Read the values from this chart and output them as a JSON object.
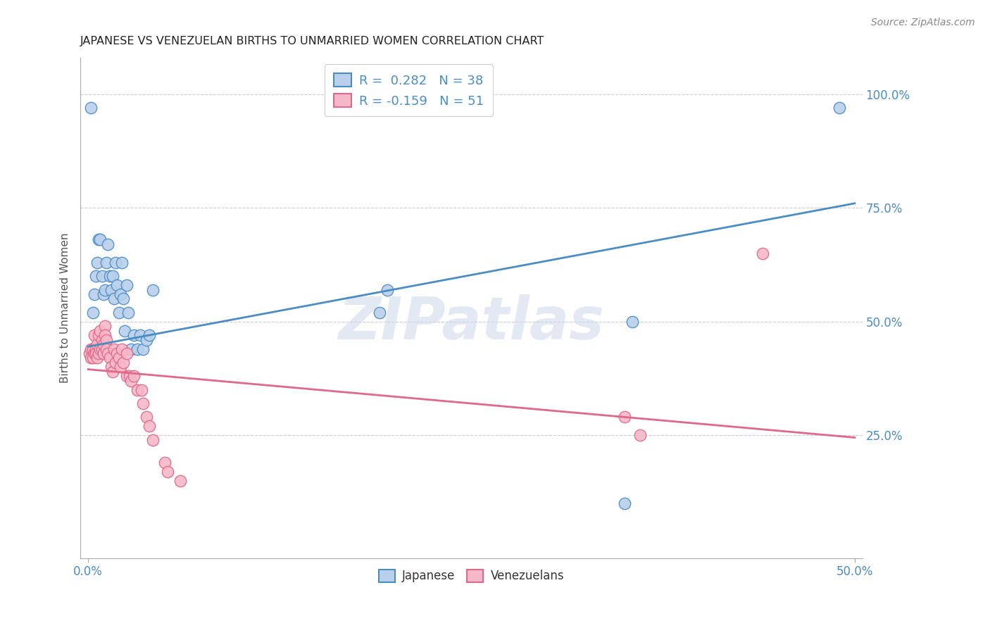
{
  "title": "JAPANESE VS VENEZUELAN BIRTHS TO UNMARRIED WOMEN CORRELATION CHART",
  "source": "Source: ZipAtlas.com",
  "ylabel": "Births to Unmarried Women",
  "right_yticks": [
    "100.0%",
    "75.0%",
    "50.0%",
    "25.0%"
  ],
  "right_ytick_vals": [
    1.0,
    0.75,
    0.5,
    0.25
  ],
  "xlim": [
    -0.005,
    0.505
  ],
  "ylim": [
    -0.02,
    1.08
  ],
  "japanese_R": 0.282,
  "japanese_N": 38,
  "venezuelan_R": -0.159,
  "venezuelan_N": 51,
  "japanese_color": "#b8d0ea",
  "japanese_line_color": "#4a8cc4",
  "venezuelan_color": "#f5b8c8",
  "venezuelan_line_color": "#e06888",
  "legend_text_color": "#4a8cc4",
  "watermark": "ZIPatlas",
  "japanese_x": [
    0.002,
    0.003,
    0.004,
    0.005,
    0.006,
    0.007,
    0.008,
    0.009,
    0.01,
    0.011,
    0.012,
    0.013,
    0.014,
    0.015,
    0.016,
    0.017,
    0.018,
    0.019,
    0.02,
    0.021,
    0.022,
    0.023,
    0.024,
    0.025,
    0.026,
    0.028,
    0.03,
    0.032,
    0.034,
    0.036,
    0.038,
    0.04,
    0.042,
    0.19,
    0.195,
    0.35,
    0.355,
    0.49
  ],
  "japanese_y": [
    0.97,
    0.52,
    0.56,
    0.6,
    0.63,
    0.68,
    0.68,
    0.6,
    0.56,
    0.57,
    0.63,
    0.67,
    0.6,
    0.57,
    0.6,
    0.55,
    0.63,
    0.58,
    0.52,
    0.56,
    0.63,
    0.55,
    0.48,
    0.58,
    0.52,
    0.44,
    0.47,
    0.44,
    0.47,
    0.44,
    0.46,
    0.47,
    0.57,
    0.52,
    0.57,
    0.1,
    0.5,
    0.97
  ],
  "venezuelan_x": [
    0.001,
    0.002,
    0.002,
    0.003,
    0.003,
    0.004,
    0.004,
    0.005,
    0.005,
    0.006,
    0.006,
    0.007,
    0.007,
    0.008,
    0.008,
    0.009,
    0.009,
    0.01,
    0.01,
    0.011,
    0.011,
    0.012,
    0.012,
    0.013,
    0.014,
    0.015,
    0.016,
    0.017,
    0.018,
    0.019,
    0.02,
    0.021,
    0.022,
    0.023,
    0.025,
    0.025,
    0.027,
    0.028,
    0.03,
    0.032,
    0.035,
    0.036,
    0.038,
    0.04,
    0.042,
    0.05,
    0.052,
    0.06,
    0.35,
    0.36,
    0.44
  ],
  "venezuelan_y": [
    0.43,
    0.44,
    0.42,
    0.44,
    0.42,
    0.43,
    0.47,
    0.44,
    0.43,
    0.45,
    0.42,
    0.43,
    0.47,
    0.48,
    0.44,
    0.46,
    0.44,
    0.45,
    0.43,
    0.49,
    0.47,
    0.46,
    0.44,
    0.43,
    0.42,
    0.4,
    0.39,
    0.44,
    0.41,
    0.43,
    0.42,
    0.4,
    0.44,
    0.41,
    0.43,
    0.38,
    0.38,
    0.37,
    0.38,
    0.35,
    0.35,
    0.32,
    0.29,
    0.27,
    0.24,
    0.19,
    0.17,
    0.15,
    0.29,
    0.25,
    0.65
  ]
}
